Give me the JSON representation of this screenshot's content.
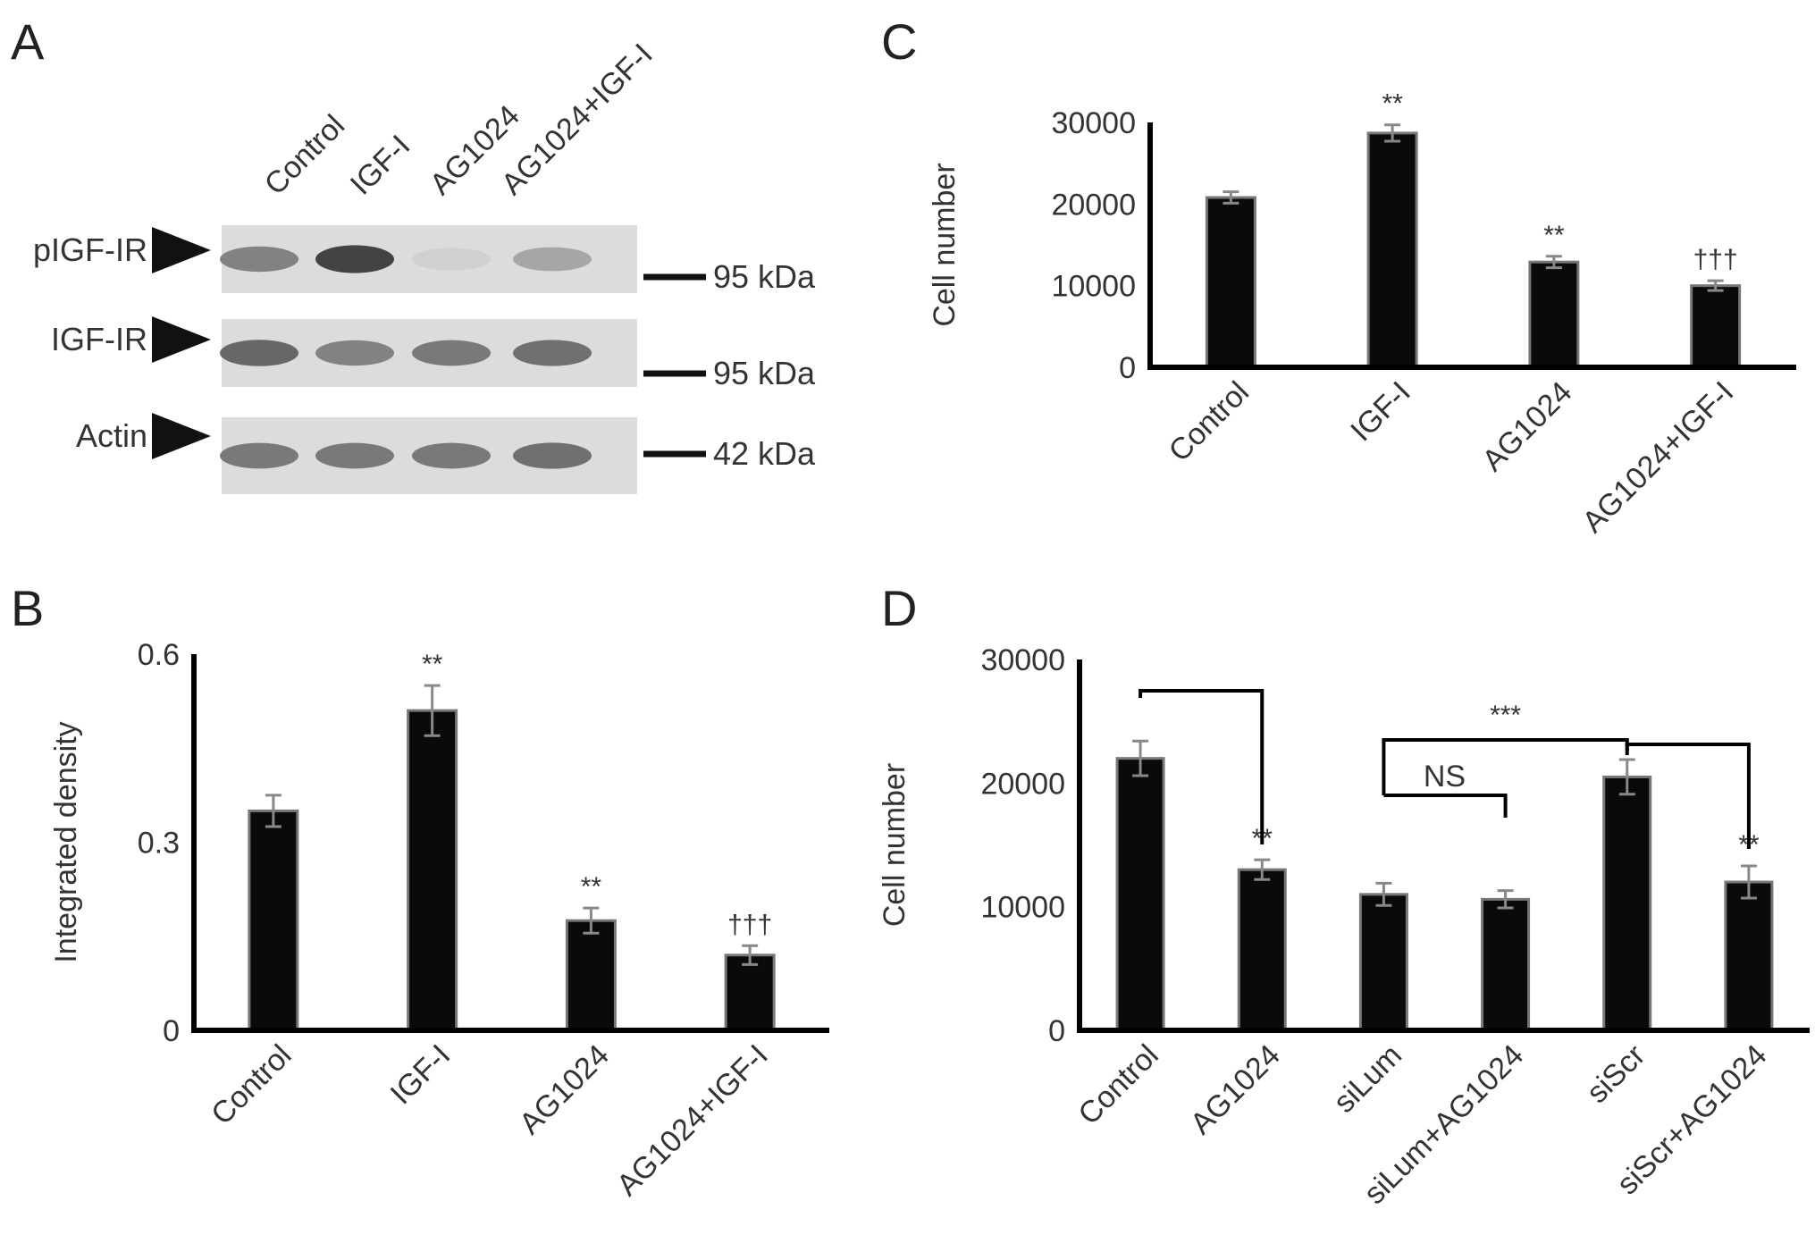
{
  "panels": {
    "a": {
      "letter": "A"
    },
    "b": {
      "letter": "B"
    },
    "c": {
      "letter": "C"
    },
    "d": {
      "letter": "D"
    }
  },
  "blot": {
    "lanes": [
      "Control",
      "IGF-I",
      "AG1024",
      "AG1024+IGF-I"
    ],
    "rows": [
      {
        "label": "pIGF-IR",
        "marker": "95 kDa",
        "intensities": [
          0.55,
          0.9,
          0.12,
          0.35
        ]
      },
      {
        "label": "IGF-IR",
        "marker": "95 kDa",
        "intensities": [
          0.7,
          0.55,
          0.6,
          0.65
        ]
      },
      {
        "label": "Actin",
        "marker": "42 kDa",
        "intensities": [
          0.6,
          0.6,
          0.6,
          0.65
        ]
      }
    ]
  },
  "chart_data": [
    {
      "panel": "B",
      "type": "bar",
      "categories": [
        "Control",
        "IGF-I",
        "AG1024",
        "AG1024+IGF-I"
      ],
      "values": [
        0.35,
        0.51,
        0.175,
        0.12
      ],
      "errors": [
        0.025,
        0.04,
        0.02,
        0.015
      ],
      "annotations": [
        "",
        "**",
        "**",
        "†††"
      ],
      "ylabel": "Integrated density",
      "yticks": [
        "0",
        "0.3",
        "0.6"
      ],
      "ylim": [
        0,
        0.6
      ]
    },
    {
      "panel": "C",
      "type": "bar",
      "categories": [
        "Control",
        "IGF-I",
        "AG1024",
        "AG1024+IGF-I"
      ],
      "values": [
        20800,
        28700,
        12900,
        10000
      ],
      "errors": [
        700,
        1000,
        700,
        600
      ],
      "annotations": [
        "",
        "**",
        "**",
        "†††"
      ],
      "ylabel": "Cell number",
      "yticks": [
        "0",
        "10000",
        "20000",
        "30000"
      ],
      "ylim": [
        0,
        30000
      ]
    },
    {
      "panel": "D",
      "type": "bar",
      "categories": [
        "Control",
        "AG1024",
        "siLum",
        "siLum+AG1024",
        "siScr",
        "siScr+AG1024"
      ],
      "values": [
        22000,
        13000,
        11000,
        10600,
        20500,
        12000
      ],
      "errors": [
        1400,
        800,
        900,
        700,
        1400,
        1300
      ],
      "annotations": [
        "",
        "**",
        "",
        "",
        "",
        "**"
      ],
      "brackets": [
        {
          "label": "",
          "from": "Control",
          "to": "AG1024"
        },
        {
          "label": "NS",
          "from": "siLum",
          "to": "siLum+AG1024"
        },
        {
          "label": "***",
          "from": "siLum",
          "to": "siScr"
        },
        {
          "label": "",
          "from": "siScr",
          "to": "siScr+AG1024"
        }
      ],
      "ylabel": "Cell number",
      "yticks": [
        "0",
        "10000",
        "20000",
        "30000"
      ],
      "ylim": [
        0,
        30000
      ]
    }
  ]
}
